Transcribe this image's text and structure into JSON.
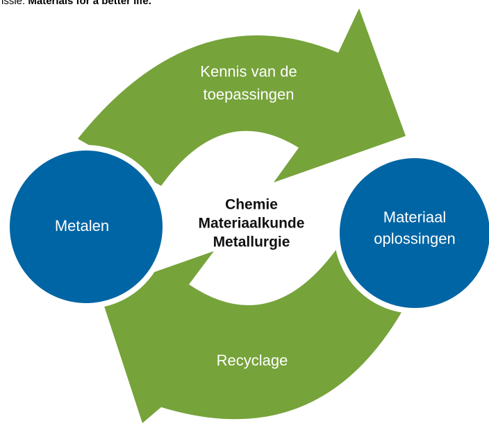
{
  "header": {
    "prefix": "issie:",
    "emphasis": "Materials for a better life."
  },
  "arrows": [
    {
      "label_lines": [
        "Kennis van de",
        "toepassingen"
      ]
    },
    {
      "label_lines": [
        "Recyclage"
      ]
    }
  ],
  "nodes": [
    {
      "label_lines": [
        "Metalen"
      ]
    },
    {
      "label_lines": [
        "Materiaal",
        "oplossingen"
      ]
    }
  ],
  "center": {
    "lines": [
      "Chemie",
      "Materiaalkunde",
      "Metallurgie"
    ]
  }
}
